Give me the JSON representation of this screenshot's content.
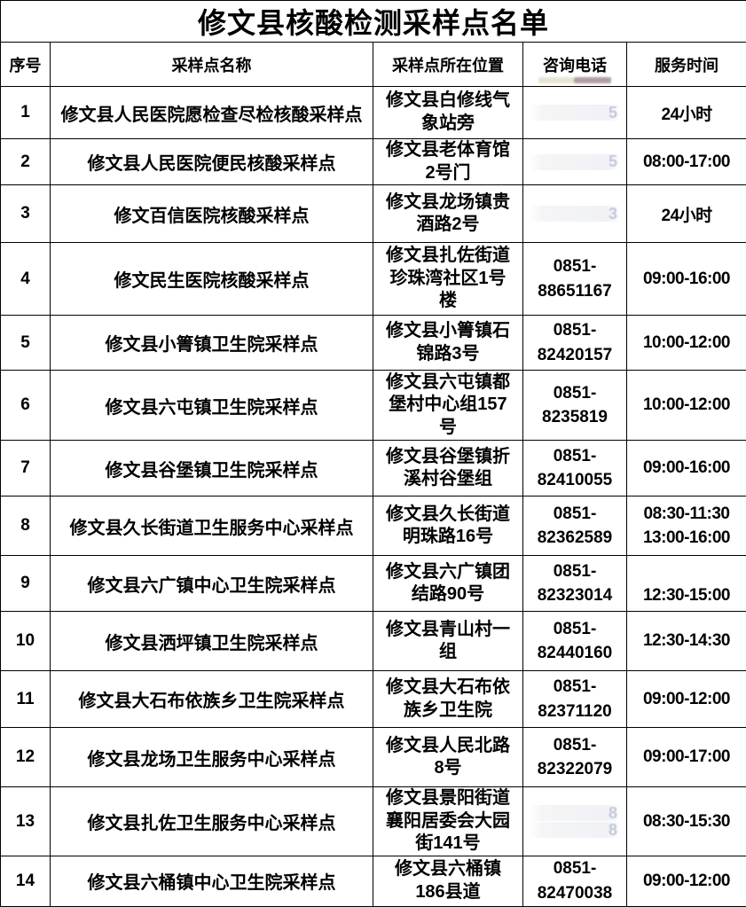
{
  "title": "修文县核酸检测采样点名单",
  "columns": [
    "序号",
    "采样点名称",
    "采样点所在位置",
    "咨询电话",
    "服务时间"
  ],
  "rows": [
    {
      "no": "1",
      "name": "修文县人民医院愿检查尽检核酸采样点",
      "location": "修文县白修线气象站旁",
      "phone": null,
      "phone_ghost": [
        "5"
      ],
      "time": "24小时"
    },
    {
      "no": "2",
      "name": "修文县人民医院便民核酸采样点",
      "location": "修文县老体育馆2号门",
      "phone": null,
      "phone_ghost": [
        "5"
      ],
      "time": "08:00-17:00"
    },
    {
      "no": "3",
      "name": "修文百信医院核酸采样点",
      "location": "修文县龙场镇贵酒路2号",
      "phone": null,
      "phone_ghost": [
        "3"
      ],
      "time": "24小时"
    },
    {
      "no": "4",
      "name": "修文民生医院核酸采样点",
      "location": "修文县扎佐街道珍珠湾社区1号楼",
      "phone": [
        "0851-",
        "88651167"
      ],
      "time": "09:00-16:00"
    },
    {
      "no": "5",
      "name": "修文县小箐镇卫生院采样点",
      "location": "修文县小箐镇石锦路3号",
      "phone": [
        "0851-",
        "82420157"
      ],
      "time": "10:00-12:00"
    },
    {
      "no": "6",
      "name": "修文县六屯镇卫生院采样点",
      "location": "修文县六屯镇都堡村中心组157号",
      "phone": [
        "0851-",
        "8235819"
      ],
      "time": "10:00-12:00"
    },
    {
      "no": "7",
      "name": "修文县谷堡镇卫生院采样点",
      "location": "修文县谷堡镇折溪村谷堡组",
      "phone": [
        "0851-",
        "82410055"
      ],
      "time": "09:00-16:00"
    },
    {
      "no": "8",
      "name": "修文县久长街道卫生服务中心采样点",
      "location": "修文县久长街道明珠路16号",
      "phone": [
        "0851-",
        "82362589"
      ],
      "time": [
        "08:30-11:30",
        "13:00-16:00"
      ]
    },
    {
      "no": "9",
      "name": "修文县六广镇中心卫生院采样点",
      "location": "修文县六广镇团结路90号",
      "phone": [
        "0851-",
        "82323014"
      ],
      "time": [
        "",
        "12:30-15:00"
      ]
    },
    {
      "no": "10",
      "name": "修文县洒坪镇卫生院采样点",
      "location": "修文县青山村一组",
      "phone": [
        "0851-",
        "82440160"
      ],
      "time": "12:30-14:30"
    },
    {
      "no": "11",
      "name": "修文县大石布依族乡卫生院采样点",
      "location": "修文县大石布依族乡卫生院",
      "phone": [
        "0851-",
        "82371120"
      ],
      "time": "09:00-12:00"
    },
    {
      "no": "12",
      "name": "修文县龙场卫生服务中心采样点",
      "location": "修文县人民北路8号",
      "phone": [
        "0851-",
        "82322079"
      ],
      "time": "09:00-17:00"
    },
    {
      "no": "13",
      "name": "修文县扎佐卫生服务中心采样点",
      "location": "修文县景阳街道襄阳居委会大园街141号",
      "phone": null,
      "phone_ghost": [
        "8",
        "8"
      ],
      "time": "08:30-15:30"
    },
    {
      "no": "14",
      "name": "修文县六桶镇中心卫生院采样点",
      "location": "修文县六桶镇186县道",
      "phone": [
        "0851-",
        "82470038"
      ],
      "time": "09:00-12:00"
    }
  ]
}
